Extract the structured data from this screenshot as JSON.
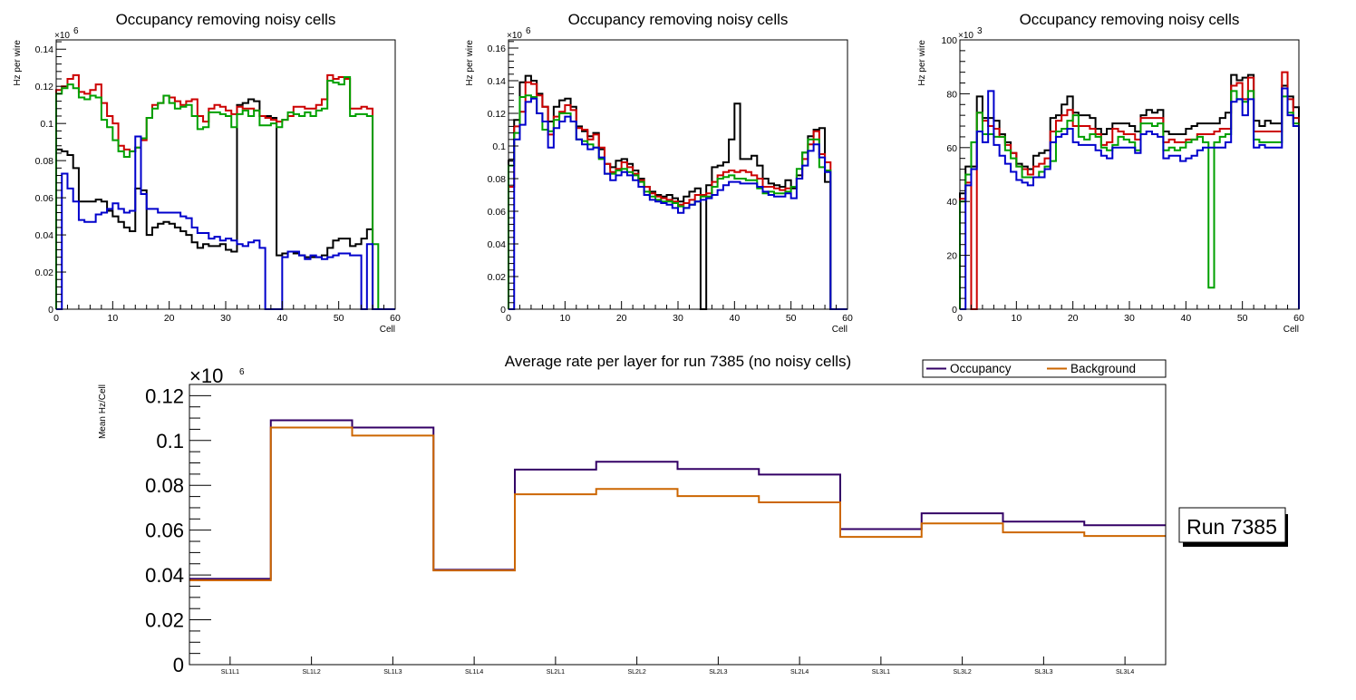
{
  "chart_data": [
    {
      "type": "line",
      "subtype": "step-histogram",
      "title": "Occupancy removing noisy cells",
      "xlabel": "Cell",
      "ylabel": "Hz per wire",
      "multiplier_label": "×10",
      "multiplier_exp": "6",
      "xlim": [
        0,
        60
      ],
      "ylim": [
        0,
        0.145
      ],
      "xticks": [
        0,
        10,
        20,
        30,
        40,
        50,
        60
      ],
      "yticks": [
        0,
        0.02,
        0.04,
        0.06,
        0.08,
        0.1,
        0.12,
        0.14
      ],
      "ytick_labels": [
        "0",
        "0.02",
        "0.04",
        "0.06",
        "0.08",
        "0.1",
        "0.12",
        "0.14"
      ],
      "bin_width": 1,
      "series": [
        {
          "name": "black",
          "color": "#000000",
          "values": [
            0.086,
            0.085,
            0.083,
            0.076,
            0.058,
            0.058,
            0.058,
            0.059,
            0.058,
            0.053,
            0.05,
            0.047,
            0.044,
            0.042,
            0.065,
            0.064,
            0.04,
            0.044,
            0.046,
            0.047,
            0.046,
            0.044,
            0.042,
            0.04,
            0.036,
            0.033,
            0.035,
            0.034,
            0.034,
            0.035,
            0.032,
            0.031,
            0.11,
            0.111,
            0.113,
            0.112,
            0.104,
            0.104,
            0.103,
            0.029,
            0.03,
            0.031,
            0.03,
            0.029,
            0.028,
            0.028,
            0.028,
            0.029,
            0.033,
            0.037,
            0.038,
            0.038,
            0.034,
            0.035,
            0.038,
            0.043,
            0,
            0,
            0,
            0
          ]
        },
        {
          "name": "red",
          "color": "#cc0000",
          "values": [
            0.118,
            0.12,
            0.124,
            0.126,
            0.117,
            0.116,
            0.118,
            0.121,
            0.111,
            0.104,
            0.1,
            0.088,
            0.086,
            0.085,
            0.087,
            0.091,
            0.103,
            0.11,
            0.111,
            0.115,
            0.114,
            0.112,
            0.11,
            0.112,
            0.113,
            0.104,
            0.101,
            0.108,
            0.11,
            0.109,
            0.107,
            0.105,
            0.109,
            0.108,
            0.108,
            0.107,
            0.104,
            0.103,
            0.102,
            0.101,
            0.102,
            0.104,
            0.109,
            0.109,
            0.108,
            0.108,
            0.11,
            0.113,
            0.126,
            0.124,
            0.125,
            0.124,
            0.108,
            0.108,
            0.109,
            0.108,
            0,
            0,
            0,
            0
          ]
        },
        {
          "name": "green",
          "color": "#00a000",
          "values": [
            0.116,
            0.119,
            0.121,
            0.119,
            0.114,
            0.113,
            0.115,
            0.114,
            0.102,
            0.098,
            0.091,
            0.085,
            0.082,
            0.085,
            0.087,
            0.092,
            0.103,
            0.108,
            0.111,
            0.115,
            0.111,
            0.108,
            0.109,
            0.11,
            0.104,
            0.097,
            0.098,
            0.106,
            0.106,
            0.105,
            0.104,
            0.098,
            0.105,
            0.107,
            0.104,
            0.107,
            0.099,
            0.099,
            0.1,
            0.098,
            0.102,
            0.106,
            0.105,
            0.104,
            0.106,
            0.104,
            0.107,
            0.108,
            0.123,
            0.122,
            0.121,
            0.125,
            0.104,
            0.105,
            0.105,
            0.104,
            0.035,
            0,
            0,
            0
          ]
        },
        {
          "name": "blue",
          "color": "#0000cc",
          "values": [
            0,
            0.073,
            0.065,
            0.058,
            0.048,
            0.047,
            0.047,
            0.051,
            0.052,
            0.054,
            0.057,
            0.054,
            0.052,
            0.053,
            0.093,
            0.062,
            0.054,
            0.054,
            0.052,
            0.052,
            0.052,
            0.052,
            0.05,
            0.049,
            0.044,
            0.041,
            0.041,
            0.038,
            0.039,
            0.037,
            0.038,
            0.037,
            0.035,
            0.034,
            0.036,
            0.037,
            0.033,
            0,
            0,
            0,
            0.028,
            0.031,
            0.031,
            0.029,
            0.027,
            0.029,
            0.028,
            0.027,
            0.028,
            0.029,
            0.03,
            0.03,
            0.029,
            0.029,
            0,
            0.035,
            0,
            0,
            0,
            0
          ]
        }
      ]
    },
    {
      "type": "line",
      "subtype": "step-histogram",
      "title": "Occupancy removing noisy cells",
      "xlabel": "Cell",
      "ylabel": "Hz per wire",
      "multiplier_label": "×10",
      "multiplier_exp": "6",
      "xlim": [
        0,
        60
      ],
      "ylim": [
        0,
        0.165
      ],
      "xticks": [
        0,
        10,
        20,
        30,
        40,
        50,
        60
      ],
      "yticks": [
        0,
        0.02,
        0.04,
        0.06,
        0.08,
        0.1,
        0.12,
        0.14,
        0.16
      ],
      "ytick_labels": [
        "0",
        "0.02",
        "0.04",
        "0.06",
        "0.08",
        "0.1",
        "0.12",
        "0.14",
        "0.16"
      ],
      "bin_width": 1,
      "series": [
        {
          "name": "black",
          "color": "#000000",
          "values": [
            0.091,
            0.116,
            0.139,
            0.143,
            0.14,
            0.132,
            0.124,
            0.115,
            0.124,
            0.128,
            0.129,
            0.124,
            0.112,
            0.109,
            0.106,
            0.108,
            0.098,
            0.089,
            0.087,
            0.091,
            0.092,
            0.089,
            0.085,
            0.08,
            0.075,
            0.072,
            0.07,
            0.069,
            0.07,
            0.068,
            0.066,
            0.069,
            0.072,
            0.074,
            0,
            0.076,
            0.087,
            0.088,
            0.09,
            0.104,
            0.126,
            0.092,
            0.092,
            0.094,
            0.088,
            0.08,
            0.077,
            0.076,
            0.075,
            0.079,
            0.074,
            0.082,
            0.096,
            0.106,
            0.11,
            0.111,
            0.078,
            0,
            0,
            0
          ]
        },
        {
          "name": "red",
          "color": "#cc0000",
          "values": [
            0.075,
            0.112,
            0.121,
            0.139,
            0.138,
            0.131,
            0.124,
            0.107,
            0.118,
            0.121,
            0.125,
            0.122,
            0.111,
            0.11,
            0.104,
            0.107,
            0.099,
            0.089,
            0.084,
            0.086,
            0.09,
            0.087,
            0.083,
            0.079,
            0.075,
            0.071,
            0.069,
            0.068,
            0.067,
            0.066,
            0.064,
            0.065,
            0.067,
            0.07,
            0.07,
            0.071,
            0.078,
            0.082,
            0.084,
            0.085,
            0.084,
            0.085,
            0.084,
            0.082,
            0.08,
            0.075,
            0.075,
            0.074,
            0.073,
            0.074,
            0.075,
            0.08,
            0.092,
            0.101,
            0.109,
            0.095,
            0.09,
            0,
            0,
            0
          ]
        },
        {
          "name": "green",
          "color": "#00a000",
          "values": [
            0.088,
            0.108,
            0.13,
            0.131,
            0.13,
            0.12,
            0.11,
            0.109,
            0.116,
            0.12,
            0.12,
            0.115,
            0.104,
            0.103,
            0.101,
            0.099,
            0.092,
            0.083,
            0.083,
            0.085,
            0.086,
            0.084,
            0.082,
            0.078,
            0.072,
            0.069,
            0.067,
            0.066,
            0.066,
            0.065,
            0.063,
            0.062,
            0.064,
            0.066,
            0.069,
            0.069,
            0.075,
            0.08,
            0.081,
            0.082,
            0.08,
            0.08,
            0.079,
            0.079,
            0.074,
            0.071,
            0.072,
            0.071,
            0.071,
            0.072,
            0.075,
            0.086,
            0.096,
            0.104,
            0.104,
            0.087,
            0.085,
            0,
            0,
            0
          ]
        },
        {
          "name": "blue",
          "color": "#0000cc",
          "values": [
            0,
            0.104,
            0.113,
            0.127,
            0.129,
            0.12,
            0.115,
            0.099,
            0.111,
            0.115,
            0.118,
            0.115,
            0.104,
            0.101,
            0.098,
            0.099,
            0.093,
            0.083,
            0.079,
            0.082,
            0.084,
            0.082,
            0.079,
            0.075,
            0.07,
            0.067,
            0.066,
            0.065,
            0.064,
            0.062,
            0.059,
            0.062,
            0.064,
            0.066,
            0.067,
            0.068,
            0.07,
            0.073,
            0.076,
            0.078,
            0.078,
            0.077,
            0.077,
            0.077,
            0.075,
            0.072,
            0.07,
            0.069,
            0.069,
            0.071,
            0.068,
            0.08,
            0.088,
            0.097,
            0.101,
            0.093,
            0.084,
            0,
            0,
            0
          ]
        }
      ]
    },
    {
      "type": "line",
      "subtype": "step-histogram",
      "title": "Occupancy removing noisy cells",
      "xlabel": "Cell",
      "ylabel": "Hz per wire",
      "multiplier_label": "×10",
      "multiplier_exp": "3",
      "xlim": [
        0,
        60
      ],
      "ylim": [
        0,
        100
      ],
      "xticks": [
        0,
        10,
        20,
        30,
        40,
        50,
        60
      ],
      "yticks": [
        0,
        20,
        40,
        60,
        80,
        100
      ],
      "ytick_labels": [
        "0",
        "20",
        "40",
        "60",
        "80",
        "100"
      ],
      "bin_width": 1,
      "series": [
        {
          "name": "black",
          "color": "#000000",
          "values": [
            43,
            53,
            53,
            79,
            71,
            71,
            70,
            65,
            62,
            58,
            54,
            53,
            52,
            57,
            58,
            59,
            71,
            72,
            76,
            79,
            73,
            72,
            72,
            71,
            67,
            65,
            67,
            69,
            69,
            69,
            68,
            66,
            72,
            74,
            73,
            74,
            66,
            65,
            65,
            65,
            67,
            68,
            69,
            69,
            69,
            69,
            71,
            73,
            87,
            85,
            86,
            87,
            70,
            68,
            70,
            69,
            69,
            83,
            79,
            75
          ]
        },
        {
          "name": "red",
          "color": "#cc0000",
          "values": [
            41,
            47,
            0,
            73,
            70,
            68,
            67,
            64,
            61,
            58,
            53,
            52,
            50,
            53,
            54,
            56,
            66,
            70,
            72,
            74,
            68,
            68,
            68,
            67,
            65,
            61,
            62,
            67,
            66,
            65,
            65,
            63,
            71,
            71,
            71,
            71,
            62,
            63,
            62,
            62,
            63,
            63,
            65,
            65,
            65,
            66,
            67,
            67,
            83,
            84,
            78,
            86,
            66,
            66,
            66,
            66,
            66,
            88,
            78,
            71
          ]
        },
        {
          "name": "green",
          "color": "#00a000",
          "values": [
            40,
            50,
            62,
            73,
            65,
            65,
            64,
            64,
            59,
            56,
            53,
            49,
            49,
            49,
            51,
            53,
            55,
            66,
            67,
            70,
            72,
            64,
            63,
            65,
            64,
            60,
            59,
            61,
            64,
            63,
            62,
            59,
            69,
            69,
            68,
            69,
            59,
            60,
            59,
            60,
            62,
            63,
            64,
            62,
            8,
            62,
            64,
            65,
            81,
            78,
            77,
            81,
            63,
            62,
            62,
            62,
            62,
            79,
            73,
            69
          ]
        },
        {
          "name": "blue",
          "color": "#0000cc",
          "values": [
            0,
            46,
            52,
            66,
            62,
            81,
            61,
            57,
            54,
            51,
            48,
            47,
            46,
            49,
            49,
            52,
            62,
            64,
            65,
            67,
            62,
            61,
            61,
            61,
            59,
            57,
            56,
            60,
            60,
            60,
            60,
            58,
            65,
            66,
            65,
            64,
            56,
            57,
            57,
            55,
            56,
            57,
            59,
            60,
            60,
            60,
            60,
            62,
            77,
            78,
            72,
            78,
            60,
            61,
            60,
            60,
            60,
            82,
            72,
            68
          ]
        }
      ]
    },
    {
      "type": "line",
      "subtype": "step-histogram",
      "title": "Average rate per layer for run 7385 (no noisy cells)",
      "xlabel": "",
      "ylabel": "Mean Hz/Cell",
      "multiplier_label": "×10",
      "multiplier_exp": "6",
      "categories": [
        "SL1L1",
        "SL1L2",
        "SL1L3",
        "SL1L4",
        "SL2L1",
        "SL2L2",
        "SL2L3",
        "SL2L4",
        "SL3L1",
        "SL3L2",
        "SL3L3",
        "SL3L4"
      ],
      "ylim": [
        0,
        0.125
      ],
      "yticks": [
        0,
        0.02,
        0.04,
        0.06,
        0.08,
        0.1,
        0.12
      ],
      "ytick_labels": [
        "0",
        "0.02",
        "0.04",
        "0.06",
        "0.08",
        "0.1",
        "0.12"
      ],
      "legend": {
        "placement": "top-right",
        "entries": [
          "Occupancy",
          "Background"
        ]
      },
      "annotation": "Run 7385",
      "series": [
        {
          "name": "Occupancy",
          "color": "#330066",
          "values": [
            0.0383,
            0.109,
            0.1058,
            0.0423,
            0.087,
            0.0905,
            0.0873,
            0.0848,
            0.0605,
            0.0675,
            0.0638,
            0.0622
          ]
        },
        {
          "name": "Background",
          "color": "#cc6600",
          "values": [
            0.0376,
            0.1058,
            0.1022,
            0.042,
            0.076,
            0.0784,
            0.0752,
            0.0724,
            0.057,
            0.063,
            0.059,
            0.0574
          ]
        }
      ]
    }
  ]
}
